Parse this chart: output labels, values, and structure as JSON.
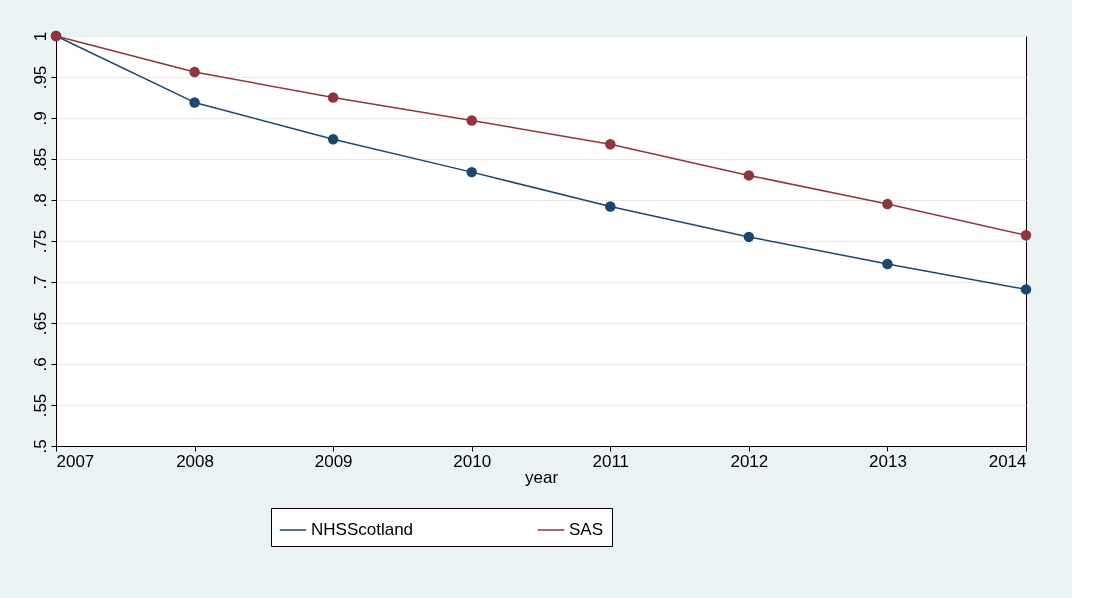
{
  "chart_data": {
    "type": "line",
    "xlabel": "year",
    "x": [
      2007,
      2008,
      2009,
      2010,
      2011,
      2012,
      2013,
      2014
    ],
    "series": [
      {
        "name": "NHSScotland",
        "color": "#1a476f",
        "values": [
          1.0,
          0.919,
          0.874,
          0.834,
          0.792,
          0.755,
          0.722,
          0.691
        ]
      },
      {
        "name": "SAS",
        "color": "#90353b",
        "values": [
          1.0,
          0.956,
          0.925,
          0.897,
          0.868,
          0.83,
          0.795,
          0.757
        ]
      }
    ],
    "xlim": [
      2007,
      2014
    ],
    "xticks": [
      2007,
      2008,
      2009,
      2010,
      2011,
      2012,
      2013,
      2014
    ],
    "ylim": [
      0.5,
      1.0
    ],
    "yticks": [
      {
        "value": 0.5,
        "label": ".5"
      },
      {
        "value": 0.55,
        "label": ".55"
      },
      {
        "value": 0.6,
        "label": ".6"
      },
      {
        "value": 0.65,
        "label": ".65"
      },
      {
        "value": 0.7,
        "label": ".7"
      },
      {
        "value": 0.75,
        "label": ".75"
      },
      {
        "value": 0.8,
        "label": ".8"
      },
      {
        "value": 0.85,
        "label": ".85"
      },
      {
        "value": 0.9,
        "label": ".9"
      },
      {
        "value": 0.95,
        "label": ".95"
      },
      {
        "value": 1.0,
        "label": "1"
      }
    ],
    "grid": "y",
    "legend": "bottom",
    "marker": "circle",
    "line_style": "solid"
  }
}
